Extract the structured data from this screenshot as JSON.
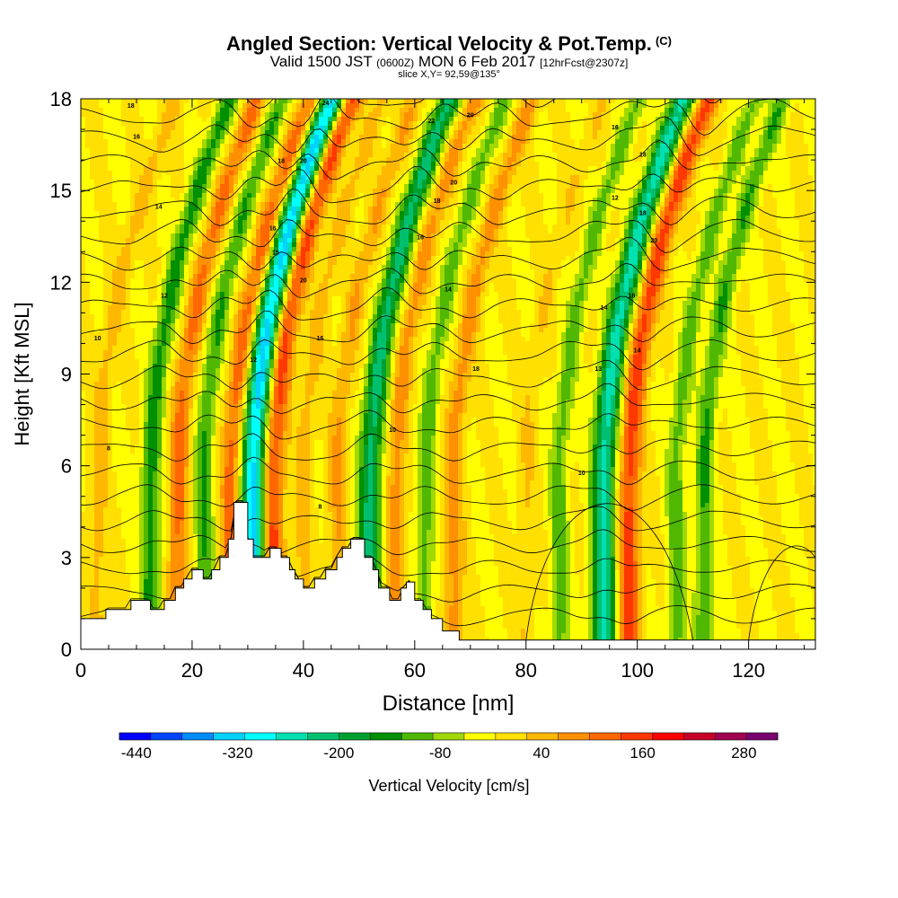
{
  "header": {
    "title": "Angled Section: Vertical Velocity & Pot.Temp.",
    "copyright": "(C)",
    "valid_prefix": "Valid 1500 JST",
    "valid_utc": "(0600Z)",
    "valid_date": "MON 6 Feb 2017",
    "forecast": "[12hrFcst@2307z]",
    "slice": "slice X,Y= 92,59@135°"
  },
  "chart_data": {
    "type": "heatmap",
    "xlabel": "Distance [nm]",
    "ylabel": "Height [Kft MSL]",
    "xlim": [
      0,
      132
    ],
    "ylim": [
      0,
      18
    ],
    "xticks": [
      0,
      20,
      40,
      60,
      80,
      100,
      120
    ],
    "yticks": [
      0,
      3,
      6,
      9,
      12,
      15,
      18
    ],
    "fill_variable": "Vertical Velocity [cm/s]",
    "contour_variable": "Potential Temperature [C]",
    "colorbar": {
      "label": "Vertical Velocity [cm/s]",
      "tick_labels": [
        "-440",
        "-320",
        "-200",
        "-80",
        "40",
        "160",
        "280"
      ],
      "tick_values": [
        -440,
        -320,
        -200,
        -80,
        40,
        160,
        280
      ],
      "range": [
        -460,
        320
      ],
      "step": 40,
      "colors": [
        "#0000ff",
        "#0044ff",
        "#008cff",
        "#00d2ff",
        "#00ffff",
        "#00e0b0",
        "#00c070",
        "#00a030",
        "#009000",
        "#50b800",
        "#a0d800",
        "#ffff00",
        "#ffe000",
        "#ffb800",
        "#ff9000",
        "#ff6800",
        "#ff3800",
        "#ff0000",
        "#c80028",
        "#a00050",
        "#7a0070"
      ]
    },
    "background_value": 20,
    "velocity_features": [
      {
        "x": 3,
        "value": 80
      },
      {
        "x": 12.5,
        "value": -120
      },
      {
        "x": 17.5,
        "value": 150
      },
      {
        "x": 22,
        "value": -100
      },
      {
        "x": 27,
        "value": 160
      },
      {
        "x": 31,
        "value": -320
      },
      {
        "x": 34.5,
        "value": 200
      },
      {
        "x": 40,
        "value": 80
      },
      {
        "x": 46,
        "value": 100
      },
      {
        "x": 52,
        "value": -200
      },
      {
        "x": 56.5,
        "value": 120
      },
      {
        "x": 62,
        "value": -80
      },
      {
        "x": 67,
        "value": 120
      },
      {
        "x": 80,
        "value": 60
      },
      {
        "x": 86,
        "value": -80
      },
      {
        "x": 94,
        "value": -240
      },
      {
        "x": 98.5,
        "value": 200
      },
      {
        "x": 107,
        "value": -80
      },
      {
        "x": 112,
        "value": -100
      }
    ],
    "theta_labels": [
      {
        "text": "18",
        "x": 9,
        "y": 17.7
      },
      {
        "text": "16",
        "x": 10,
        "y": 16.7
      },
      {
        "text": "14",
        "x": 14,
        "y": 14.4
      },
      {
        "text": "12",
        "x": 15,
        "y": 11.5
      },
      {
        "text": "10",
        "x": 3,
        "y": 10.1
      },
      {
        "text": "8",
        "x": 5,
        "y": 6.5
      },
      {
        "text": "24",
        "x": 44,
        "y": 17.8
      },
      {
        "text": "22",
        "x": 63,
        "y": 17.2
      },
      {
        "text": "20",
        "x": 70,
        "y": 17.4
      },
      {
        "text": "20",
        "x": 40,
        "y": 15.9
      },
      {
        "text": "18",
        "x": 36,
        "y": 15.9
      },
      {
        "text": "16",
        "x": 34.5,
        "y": 13.7
      },
      {
        "text": "15",
        "x": 35,
        "y": 12.9
      },
      {
        "text": "20",
        "x": 67,
        "y": 15.2
      },
      {
        "text": "18",
        "x": 64,
        "y": 14.6
      },
      {
        "text": "16",
        "x": 61,
        "y": 13.4
      },
      {
        "text": "14",
        "x": 66,
        "y": 11.7
      },
      {
        "text": "20",
        "x": 40,
        "y": 12
      },
      {
        "text": "16",
        "x": 43,
        "y": 10.1
      },
      {
        "text": "12",
        "x": 31,
        "y": 9.4
      },
      {
        "text": "10",
        "x": 56,
        "y": 7.1
      },
      {
        "text": "8",
        "x": 43,
        "y": 4.6
      },
      {
        "text": "18",
        "x": 71,
        "y": 9.1
      },
      {
        "text": "16",
        "x": 96,
        "y": 17
      },
      {
        "text": "18",
        "x": 101,
        "y": 16.1
      },
      {
        "text": "12",
        "x": 96,
        "y": 14.7
      },
      {
        "text": "18",
        "x": 101,
        "y": 14.2
      },
      {
        "text": "20",
        "x": 103,
        "y": 13.3
      },
      {
        "text": "14",
        "x": 94,
        "y": 11.1
      },
      {
        "text": "16",
        "x": 99,
        "y": 11.5
      },
      {
        "text": "14",
        "x": 100,
        "y": 9.7
      },
      {
        "text": "13",
        "x": 93,
        "y": 9.1
      },
      {
        "text": "10",
        "x": 90,
        "y": 5.7
      }
    ],
    "terrain": [
      [
        0,
        1
      ],
      [
        4.5,
        1
      ],
      [
        4.5,
        1.3
      ],
      [
        9,
        1.3
      ],
      [
        9,
        1.6
      ],
      [
        12.5,
        1.6
      ],
      [
        12.5,
        1.3
      ],
      [
        15,
        1.3
      ],
      [
        15,
        1.6
      ],
      [
        17,
        1.6
      ],
      [
        17,
        2
      ],
      [
        18.5,
        2
      ],
      [
        18.5,
        2.3
      ],
      [
        20,
        2.3
      ],
      [
        20,
        2.6
      ],
      [
        22,
        2.6
      ],
      [
        22,
        2.3
      ],
      [
        23.5,
        2.3
      ],
      [
        23.5,
        2.6
      ],
      [
        25,
        2.6
      ],
      [
        25,
        3
      ],
      [
        26.5,
        3
      ],
      [
        26.5,
        3.6
      ],
      [
        27.5,
        3.6
      ],
      [
        27.5,
        4.8
      ],
      [
        30,
        4.8
      ],
      [
        30,
        3.6
      ],
      [
        31,
        3.6
      ],
      [
        31,
        3
      ],
      [
        34,
        3
      ],
      [
        34,
        3.3
      ],
      [
        36,
        3.3
      ],
      [
        36,
        3
      ],
      [
        37.5,
        3
      ],
      [
        37.5,
        2.6
      ],
      [
        38.5,
        2.6
      ],
      [
        38.5,
        2.3
      ],
      [
        40,
        2.3
      ],
      [
        40,
        2
      ],
      [
        42,
        2
      ],
      [
        42,
        2.3
      ],
      [
        44,
        2.3
      ],
      [
        44,
        2.6
      ],
      [
        46,
        2.6
      ],
      [
        46,
        3
      ],
      [
        47,
        3
      ],
      [
        47,
        3.3
      ],
      [
        48.5,
        3.3
      ],
      [
        48.5,
        3.6
      ],
      [
        51,
        3.6
      ],
      [
        51,
        3
      ],
      [
        52.5,
        3
      ],
      [
        52.5,
        2.6
      ],
      [
        53.5,
        2.6
      ],
      [
        53.5,
        2
      ],
      [
        55.5,
        2
      ],
      [
        55.5,
        1.6
      ],
      [
        57.5,
        1.6
      ],
      [
        57.5,
        2
      ],
      [
        58.5,
        2
      ],
      [
        58.5,
        2.2
      ],
      [
        60,
        2.2
      ],
      [
        60,
        1.6
      ],
      [
        61.5,
        1.6
      ],
      [
        61.5,
        1.3
      ],
      [
        63,
        1.3
      ],
      [
        63,
        1
      ],
      [
        65,
        1
      ],
      [
        65,
        0.6
      ],
      [
        68,
        0.6
      ],
      [
        68,
        0.3
      ],
      [
        132,
        0.3
      ],
      [
        132,
        0
      ],
      [
        0,
        0
      ]
    ]
  }
}
